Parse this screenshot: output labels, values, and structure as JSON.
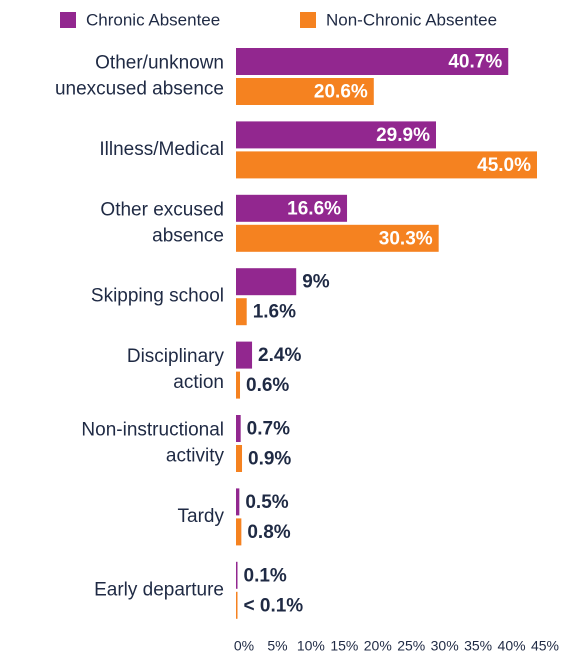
{
  "chart_data": {
    "type": "bar",
    "orientation": "horizontal",
    "categories": [
      [
        "Other/unknown",
        "unexcused absence"
      ],
      [
        "Illness/Medical"
      ],
      [
        "Other excused",
        "absence"
      ],
      [
        "Skipping school"
      ],
      [
        "Disciplinary",
        "action"
      ],
      [
        "Non-instructional",
        "activity"
      ],
      [
        "Tardy"
      ],
      [
        "Early departure"
      ]
    ],
    "series": [
      {
        "name": "Chronic Absentee",
        "color": "#92278f",
        "values": [
          40.7,
          29.9,
          16.6,
          9,
          2.4,
          0.7,
          0.5,
          0.1
        ],
        "value_labels": [
          "40.7%",
          "29.9%",
          "16.6%",
          "9%",
          "2.4%",
          "0.7%",
          "0.5%",
          "0.1%"
        ]
      },
      {
        "name": "Non-Chronic Absentee",
        "color": "#f58220",
        "values": [
          20.6,
          45.0,
          30.3,
          1.6,
          0.6,
          0.9,
          0.8,
          0.05
        ],
        "value_labels": [
          "20.6%",
          "45.0%",
          "30.3%",
          "1.6%",
          "0.6%",
          "0.9%",
          "0.8%",
          "< 0.1%"
        ]
      }
    ],
    "xlim": [
      0,
      45
    ],
    "xticks": [
      {
        "value": 0,
        "label": "0%"
      },
      {
        "value": 5,
        "label": "5%"
      },
      {
        "value": 10,
        "label": "10%"
      },
      {
        "value": 15,
        "label": "15%"
      },
      {
        "value": 20,
        "label": "20%"
      },
      {
        "value": 25,
        "label": "25%"
      },
      {
        "value": 30,
        "label": "30%"
      },
      {
        "value": 35,
        "label": "35%"
      },
      {
        "value": 40,
        "label": "40%"
      },
      {
        "value": 45,
        "label": "45%"
      }
    ],
    "legend": "top"
  }
}
